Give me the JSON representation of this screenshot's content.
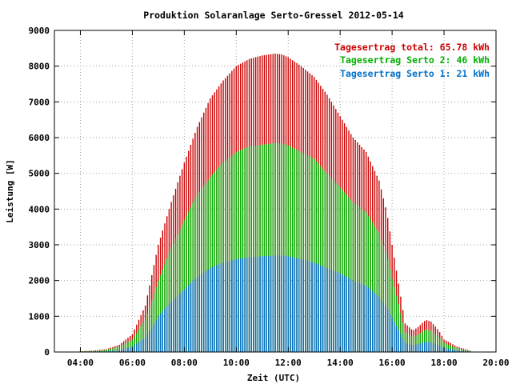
{
  "chart_data": {
    "type": "bar",
    "title": "Produktion Solaranlage Serto-Gressel 2012-05-14",
    "xlabel": "Zeit (UTC)",
    "ylabel": "Leistung [W]",
    "xlim": [
      3,
      20
    ],
    "ylim": [
      0,
      9000
    ],
    "x_ticks": [
      "04:00",
      "06:00",
      "08:00",
      "10:00",
      "12:00",
      "14:00",
      "16:00",
      "18:00",
      "20:00"
    ],
    "y_ticks": [
      "0",
      "1000",
      "2000",
      "3000",
      "4000",
      "5000",
      "6000",
      "7000",
      "8000",
      "9000"
    ],
    "grid": true,
    "legend_position": "top-right",
    "colors": {
      "total": "#cc0000",
      "serto2": "#00b000",
      "serto1": "#0070c8"
    },
    "legend": [
      "Tagesertrag total: 65.78 kWh",
      "Tagesertrag Serto 2: 46 kWh",
      "Tagesertrag Serto 1: 21 kWh"
    ],
    "bar_interval_minutes": 5,
    "x": [
      4.0,
      4.5,
      5.0,
      5.5,
      6.0,
      6.5,
      7.0,
      7.5,
      8.0,
      8.5,
      9.0,
      9.5,
      10.0,
      10.5,
      11.0,
      11.5,
      11.75,
      12.0,
      12.5,
      13.0,
      13.5,
      14.0,
      14.5,
      15.0,
      15.5,
      15.8,
      16.0,
      16.3,
      16.5,
      16.8,
      17.0,
      17.3,
      17.5,
      17.8,
      18.0,
      18.5,
      19.0
    ],
    "series": [
      {
        "name": "Tagesertrag total: 65.78 kWh",
        "values": [
          20,
          40,
          80,
          200,
          500,
          1300,
          3000,
          4200,
          5300,
          6300,
          7100,
          7600,
          8000,
          8200,
          8300,
          8350,
          8330,
          8250,
          8000,
          7700,
          7200,
          6600,
          6000,
          5600,
          4800,
          3900,
          3000,
          1700,
          800,
          600,
          700,
          900,
          850,
          600,
          350,
          150,
          40
        ]
      },
      {
        "name": "Tagesertrag Serto 2: 46 kWh",
        "values": [
          15,
          30,
          60,
          150,
          350,
          900,
          2000,
          2900,
          3700,
          4400,
          4900,
          5300,
          5600,
          5750,
          5800,
          5850,
          5830,
          5780,
          5600,
          5400,
          5000,
          4600,
          4200,
          3900,
          3350,
          2700,
          2050,
          1200,
          560,
          420,
          490,
          630,
          600,
          420,
          250,
          110,
          30
        ]
      },
      {
        "name": "Tagesertrag Serto 1: 21 kWh",
        "values": [
          5,
          10,
          20,
          50,
          150,
          400,
          1000,
          1400,
          1750,
          2100,
          2350,
          2500,
          2600,
          2650,
          2680,
          2700,
          2700,
          2680,
          2600,
          2500,
          2350,
          2200,
          2000,
          1850,
          1550,
          1250,
          950,
          550,
          260,
          190,
          220,
          280,
          270,
          190,
          110,
          50,
          10
        ]
      }
    ]
  }
}
